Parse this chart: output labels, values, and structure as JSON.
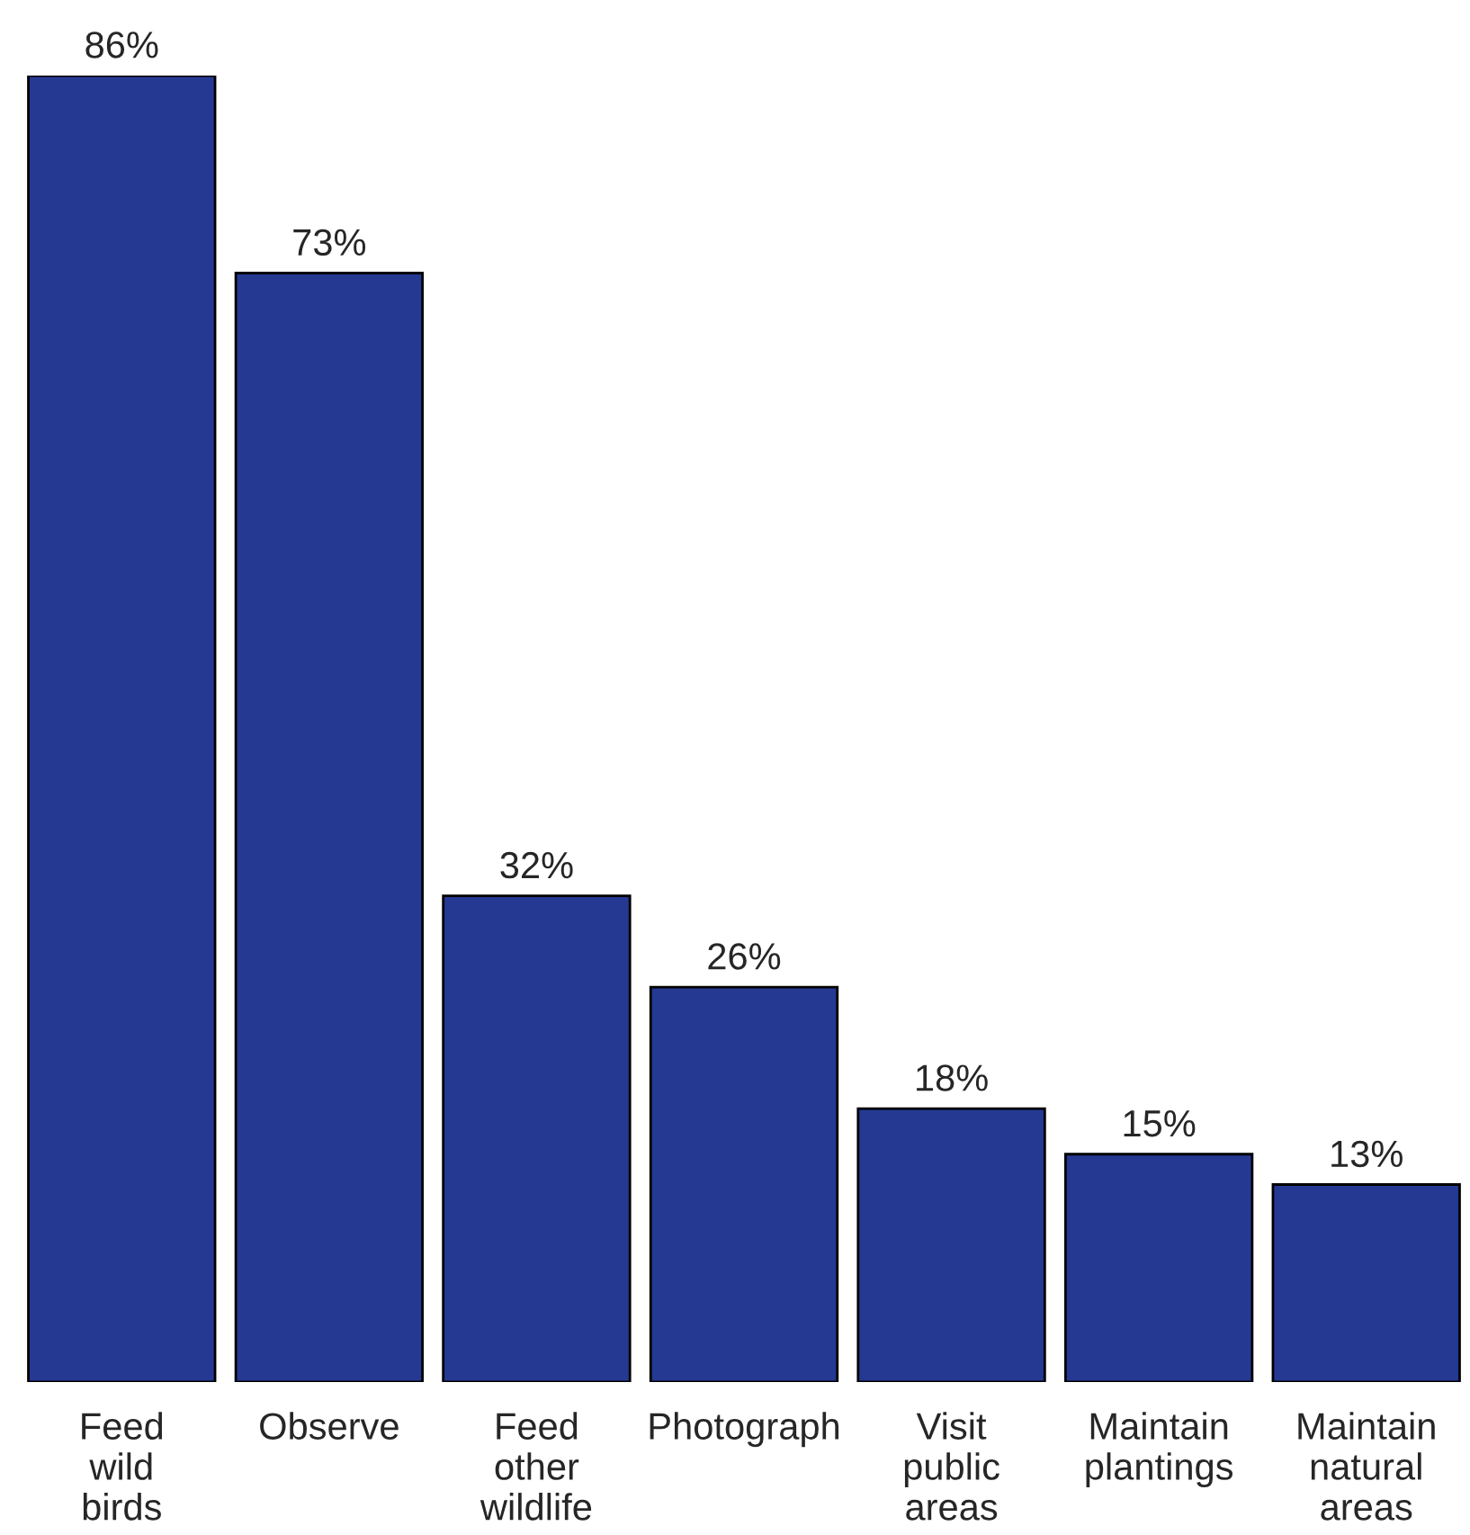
{
  "chart_data": {
    "type": "bar",
    "categories": [
      "Feed\nwild\nbirds",
      "Observe",
      "Feed\nother\nwildlife",
      "Photograph",
      "Visit\npublic\nareas",
      "Maintain\nplantings",
      "Maintain\nnatural\nareas"
    ],
    "values": [
      86,
      73,
      32,
      26,
      18,
      15,
      13
    ],
    "value_labels": [
      "86%",
      "73%",
      "32%",
      "26%",
      "18%",
      "15%",
      "13%"
    ],
    "color": "#253993",
    "grid": false,
    "legend": false
  }
}
